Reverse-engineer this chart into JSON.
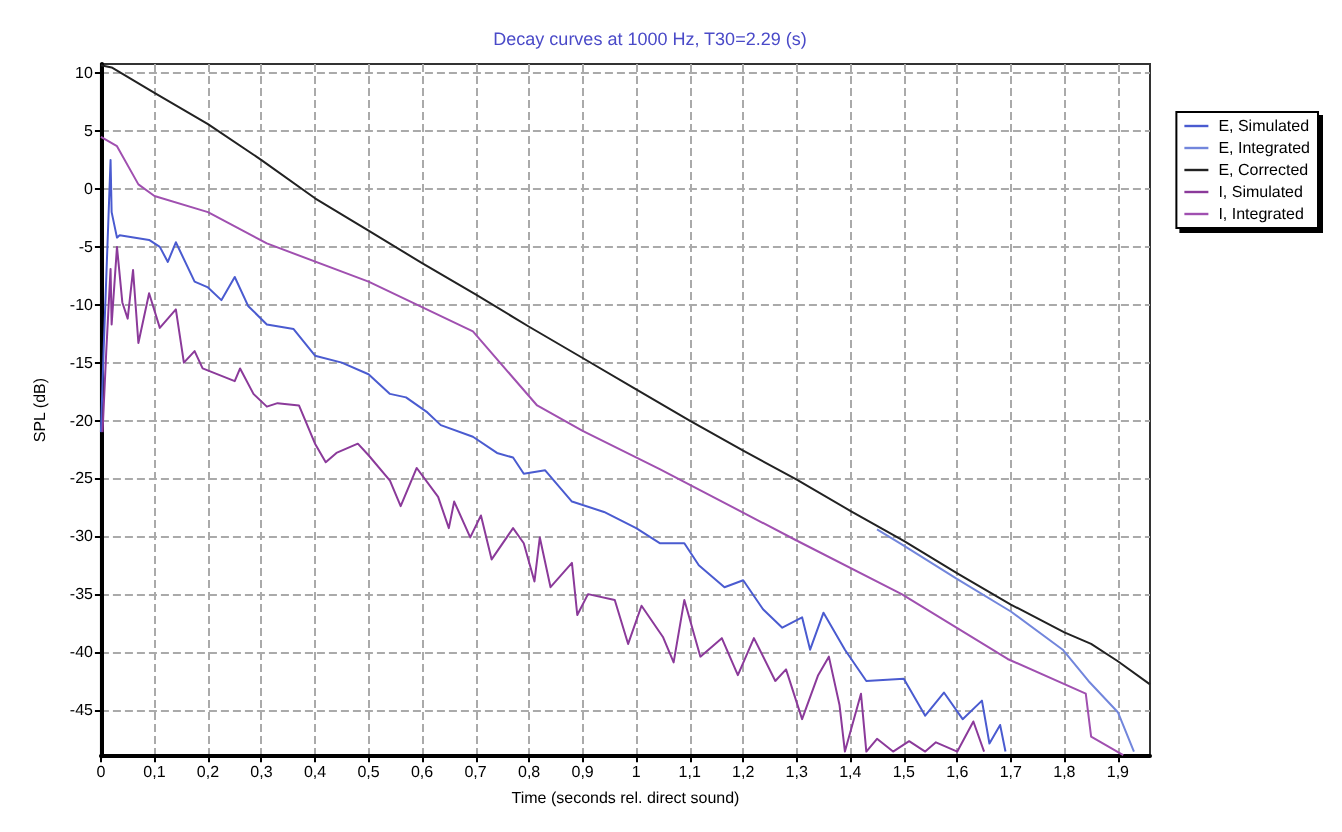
{
  "chart_data": {
    "type": "line",
    "title": "Decay curves at 1000 Hz, T30=2.29 (s)",
    "xlabel": "Time (seconds rel. direct sound)",
    "ylabel": "SPL (dB)",
    "xlim": [
      0,
      1.96
    ],
    "ylim": [
      -49,
      10.8
    ],
    "xticks": [
      0,
      {
        "value": 0.1,
        "label": "0,1"
      },
      {
        "value": 0.2,
        "label": "0,2"
      },
      {
        "value": 0.3,
        "label": "0,3"
      },
      {
        "value": 0.4,
        "label": "0,4"
      },
      {
        "value": 0.5,
        "label": "0,5"
      },
      {
        "value": 0.6,
        "label": "0,6"
      },
      {
        "value": 0.7,
        "label": "0,7"
      },
      {
        "value": 0.8,
        "label": "0,8"
      },
      {
        "value": 0.9,
        "label": "0,9"
      },
      1,
      {
        "value": 1.1,
        "label": "1,1"
      },
      {
        "value": 1.2,
        "label": "1,2"
      },
      {
        "value": 1.3,
        "label": "1,3"
      },
      {
        "value": 1.4,
        "label": "1,4"
      },
      {
        "value": 1.5,
        "label": "1,5"
      },
      {
        "value": 1.6,
        "label": "1,6"
      },
      {
        "value": 1.7,
        "label": "1,7"
      },
      {
        "value": 1.8,
        "label": "1,8"
      },
      {
        "value": 1.9,
        "label": "1,9"
      }
    ],
    "yticks": [
      -45,
      -40,
      -35,
      -30,
      -25,
      -20,
      -15,
      -10,
      -5,
      0,
      5,
      10
    ],
    "grid": true,
    "legend": "right",
    "marker": "none",
    "line_style": "solid",
    "series": [
      {
        "name": "E, Simulated",
        "color": "#4a5bd0",
        "x": [
          0,
          0.005,
          0.018,
          0.02,
          0.03,
          0.035,
          0.09,
          0.11,
          0.125,
          0.14,
          0.175,
          0.2,
          0.225,
          0.25,
          0.275,
          0.31,
          0.36,
          0.4,
          0.45,
          0.5,
          0.54,
          0.57,
          0.61,
          0.635,
          0.695,
          0.74,
          0.77,
          0.79,
          0.83,
          0.88,
          0.94,
          1.0,
          1.044,
          1.09,
          1.117,
          1.165,
          1.2,
          1.237,
          1.273,
          1.31,
          1.325,
          1.35,
          1.39,
          1.43,
          1.5,
          1.54,
          1.575,
          1.61,
          1.646,
          1.66,
          1.68,
          1.69
        ],
        "values": [
          -21,
          -14,
          2.5,
          -2,
          -4.2,
          -4,
          -4.4,
          -5,
          -6.3,
          -4.6,
          -8,
          -8.5,
          -9.6,
          -7.6,
          -10.1,
          -11.7,
          -12.1,
          -14.4,
          -15,
          -16,
          -17.7,
          -18,
          -19.3,
          -20.4,
          -21.4,
          -22.8,
          -23.2,
          -24.6,
          -24.3,
          -27,
          -27.9,
          -29.3,
          -30.6,
          -30.6,
          -32.5,
          -34.4,
          -33.8,
          -36.3,
          -37.9,
          -37,
          -39.8,
          -36.6,
          -39.8,
          -42.5,
          -42.3,
          -45.5,
          -43.5,
          -45.8,
          -44.2,
          -47.9,
          -46.3,
          -48.6
        ]
      },
      {
        "name": "E, Integrated",
        "color": "#7286dc",
        "x": [
          1.45,
          1.5,
          1.6,
          1.7,
          1.797,
          1.845,
          1.9,
          1.93
        ],
        "values": [
          -29.4,
          -30.8,
          -33.7,
          -36.5,
          -39.8,
          -42.5,
          -45.2,
          -48.6
        ]
      },
      {
        "name": "E, Corrected",
        "color": "#222222",
        "x": [
          0,
          0.02,
          0.1,
          0.2,
          0.3,
          0.4,
          0.5,
          0.6,
          0.7,
          0.8,
          0.9,
          1.0,
          1.1,
          1.2,
          1.3,
          1.4,
          1.5,
          1.6,
          1.7,
          1.8,
          1.85,
          1.9,
          1.96
        ],
        "values": [
          10.7,
          10.5,
          8.3,
          5.6,
          2.5,
          -0.8,
          -3.6,
          -6.4,
          -9.1,
          -11.9,
          -14.6,
          -17.3,
          -20,
          -22.6,
          -25.1,
          -27.8,
          -30.4,
          -33.2,
          -35.9,
          -38.3,
          -39.3,
          -40.8,
          -42.8
        ]
      },
      {
        "name": "I, Simulated",
        "color": "#8b3a9a",
        "x": [
          0.003,
          0.01,
          0.018,
          0.02,
          0.03,
          0.04,
          0.05,
          0.06,
          0.07,
          0.09,
          0.11,
          0.14,
          0.155,
          0.175,
          0.19,
          0.25,
          0.26,
          0.285,
          0.31,
          0.33,
          0.37,
          0.4,
          0.42,
          0.44,
          0.48,
          0.5,
          0.54,
          0.56,
          0.59,
          0.63,
          0.65,
          0.66,
          0.69,
          0.71,
          0.73,
          0.77,
          0.79,
          0.81,
          0.82,
          0.84,
          0.88,
          0.89,
          0.91,
          0.96,
          0.985,
          1.01,
          1.05,
          1.07,
          1.09,
          1.12,
          1.16,
          1.19,
          1.22,
          1.26,
          1.28,
          1.31,
          1.34,
          1.36,
          1.38,
          1.39,
          1.42,
          1.43,
          1.45,
          1.48,
          1.51,
          1.54,
          1.56,
          1.6,
          1.63,
          1.65
        ],
        "values": [
          -21,
          -14,
          -6.9,
          -11.7,
          -5,
          -9.8,
          -11.2,
          -7,
          -13.3,
          -9,
          -12,
          -10.4,
          -15,
          -14,
          -15.5,
          -16.6,
          -15.5,
          -17.7,
          -18.8,
          -18.5,
          -18.7,
          -22,
          -23.6,
          -22.8,
          -22,
          -23,
          -25.2,
          -27.4,
          -24.1,
          -26.6,
          -29.3,
          -27,
          -30.1,
          -28.2,
          -32,
          -29.3,
          -30.6,
          -33.9,
          -30.1,
          -34.4,
          -32.3,
          -36.8,
          -35,
          -35.5,
          -39.3,
          -36,
          -38.7,
          -40.9,
          -35.5,
          -40.4,
          -38.8,
          -42,
          -38.8,
          -42.5,
          -41.5,
          -45.8,
          -42,
          -40.4,
          -44.6,
          -48.6,
          -43.6,
          -48.6,
          -47.5,
          -48.6,
          -47.7,
          -48.6,
          -47.8,
          -48.6,
          -46,
          -48.6
        ]
      },
      {
        "name": "I, Integrated",
        "color": "#a050b0",
        "x": [
          0,
          0.03,
          0.07,
          0.1,
          0.2,
          0.31,
          0.5,
          0.695,
          0.815,
          0.9,
          1.044,
          1.297,
          1.496,
          1.694,
          1.84,
          1.85,
          1.91
        ],
        "values": [
          4.5,
          3.7,
          0.4,
          -0.6,
          -2,
          -4.7,
          -8,
          -12.3,
          -18.7,
          -20.9,
          -24.2,
          -30.3,
          -35,
          -40.6,
          -43.6,
          -47.3,
          -48.9
        ]
      }
    ]
  }
}
